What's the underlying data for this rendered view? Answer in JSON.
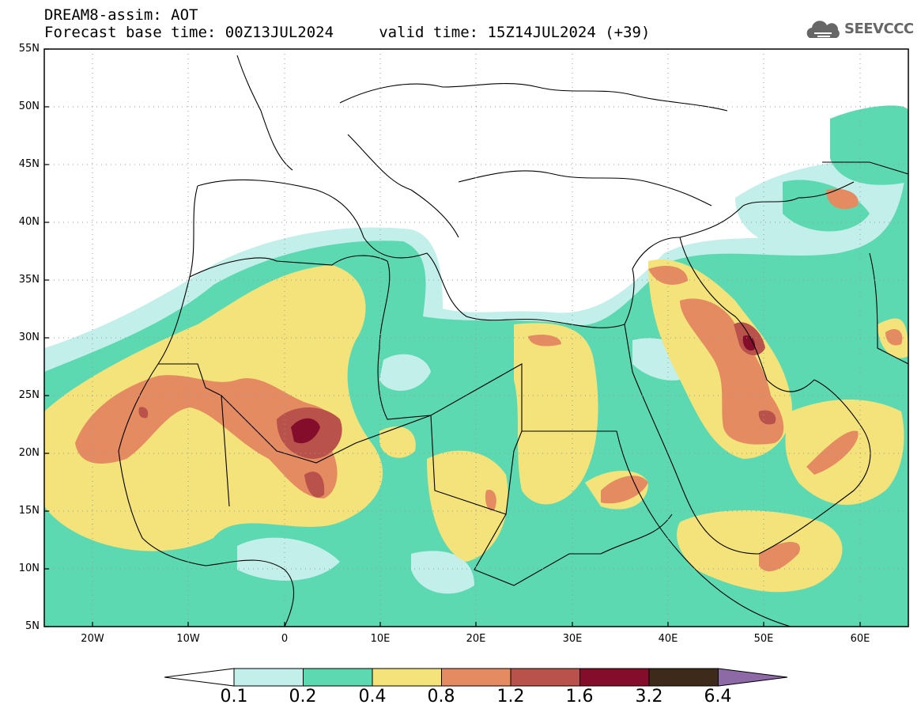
{
  "header": {
    "line1": "DREAM8-assim: AOT",
    "line2": "Forecast base time: 00Z13JUL2024     valid time: 15Z14JUL2024 (+39)"
  },
  "logo": {
    "text": "SEEVCCC",
    "icon": "cloud-icon"
  },
  "map": {
    "lat_ticks": [
      "55N",
      "50N",
      "45N",
      "40N",
      "35N",
      "30N",
      "25N",
      "20N",
      "15N",
      "10N",
      "5N"
    ],
    "lon_ticks": [
      "20W",
      "10W",
      "0",
      "10E",
      "20E",
      "30E",
      "40E",
      "50E",
      "60E"
    ],
    "lat_range": [
      5,
      55
    ],
    "lon_range": [
      -25,
      65
    ],
    "grid": "dotted"
  },
  "colorbar": {
    "levels": [
      "0.1",
      "0.2",
      "0.4",
      "0.8",
      "1.2",
      "1.6",
      "3.2",
      "6.4"
    ],
    "colors": [
      "#c2efe9",
      "#5dd9b2",
      "#f4e27a",
      "#e58b62",
      "#b8524a",
      "#830d2a",
      "#3d2a1a"
    ],
    "under_color": "#ffffff",
    "over_color": "#8d6aa6"
  },
  "palette": {
    "land_outline": "#000000",
    "background": "#ffffff"
  }
}
